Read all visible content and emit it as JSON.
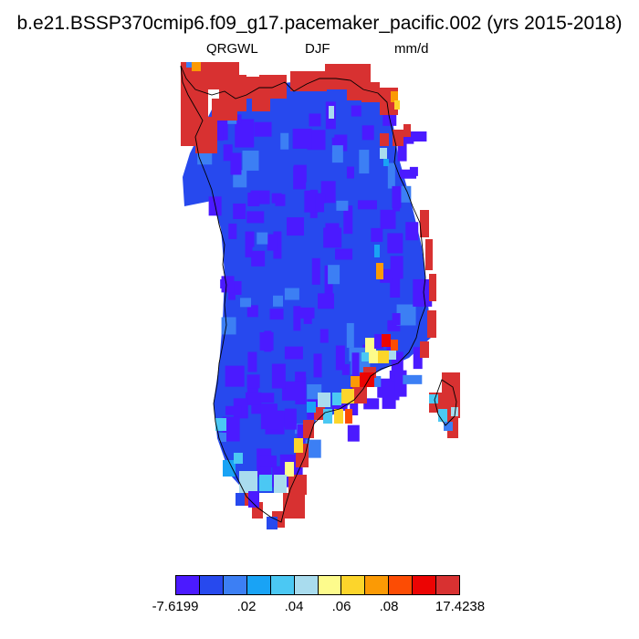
{
  "header": {
    "title": "b.e21.BSSP370cmip6.f09_g17.pacemaker_pacific.002 (yrs 2015-2018)",
    "variable": "QRGWL",
    "season": "DJF",
    "units": "mm/d"
  },
  "legend": {
    "colors": [
      "#4b1aff",
      "#2749ee",
      "#3c7ff4",
      "#19a3f5",
      "#4bc8f3",
      "#a9dcee",
      "#fdfb8c",
      "#fcd52b",
      "#fb9a05",
      "#fc4c04",
      "#ec0403",
      "#d83131"
    ],
    "tick_labels": [
      "-7.6199",
      ".02",
      ".04",
      ".06",
      ".08",
      "17.4238"
    ]
  },
  "map": {
    "region": "Greenland",
    "dominant_color": "#2749ee",
    "coast_color": "#d83131",
    "outline_color": "#000000"
  }
}
